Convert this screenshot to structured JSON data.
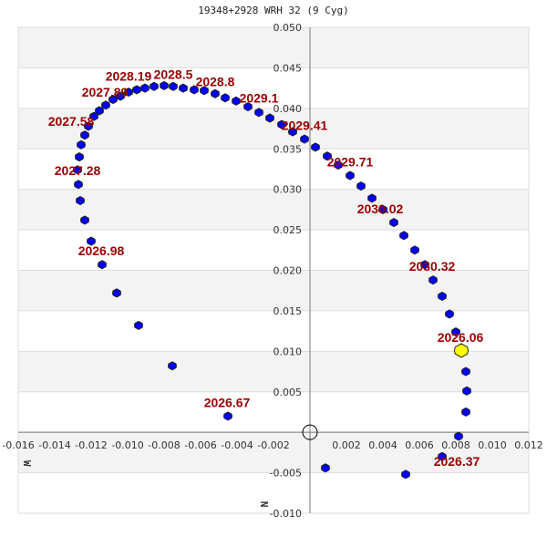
{
  "chart_data": {
    "type": "scatter",
    "title": "19348+2928 WRH  32 (9 Cyg)",
    "xlabel": "W",
    "ylabel": "N",
    "xlim": [
      -0.016,
      0.012
    ],
    "ylim": [
      -0.01,
      0.05
    ],
    "x_ticks": [
      "-0.016",
      "-0.014",
      "-0.012",
      "-0.010",
      "-0.008",
      "-0.006",
      "-0.004",
      "-0.002",
      "0.002",
      "0.004",
      "0.006",
      "0.008",
      "0.010",
      "0.012"
    ],
    "y_ticks": [
      "0.050",
      "0.045",
      "0.040",
      "0.035",
      "0.030",
      "0.025",
      "0.020",
      "0.015",
      "0.010",
      "0.005",
      "-0.005",
      "-0.010"
    ],
    "grid": "horizontal alternating bands",
    "colors": {
      "points": "#0000ff",
      "current": "#ffff00",
      "labels": "#990000",
      "band": "#f3f3f3"
    },
    "current_position": {
      "label": "2026.06",
      "x": 0.0083,
      "y": 0.0101
    },
    "points": [
      [
        0.00855,
        0.0075
      ],
      [
        0.0086,
        0.0051
      ],
      [
        0.00855,
        0.0025
      ],
      [
        0.00815,
        -0.0005
      ],
      [
        0.00725,
        -0.003
      ],
      [
        0.00525,
        -0.0052
      ],
      [
        0.00085,
        -0.0044
      ],
      [
        -0.0045,
        0.002
      ],
      [
        -0.00755,
        0.0082
      ],
      [
        -0.0094,
        0.0132
      ],
      [
        -0.0106,
        0.0172
      ],
      [
        -0.0114,
        0.0207
      ],
      [
        -0.012,
        0.0236
      ],
      [
        -0.01235,
        0.0262
      ],
      [
        -0.0126,
        0.0286
      ],
      [
        -0.0127,
        0.0306
      ],
      [
        -0.01275,
        0.0324
      ],
      [
        -0.01265,
        0.034
      ],
      [
        -0.01255,
        0.0355
      ],
      [
        -0.01235,
        0.0367
      ],
      [
        -0.01215,
        0.0378
      ],
      [
        -0.01185,
        0.039
      ],
      [
        -0.01155,
        0.0397
      ],
      [
        -0.0112,
        0.0404
      ],
      [
        -0.0108,
        0.0411
      ],
      [
        -0.0104,
        0.0415
      ],
      [
        -0.00995,
        0.042
      ],
      [
        -0.0095,
        0.0423
      ],
      [
        -0.00905,
        0.0425
      ],
      [
        -0.00855,
        0.0427
      ],
      [
        -0.008,
        0.0428
      ],
      [
        -0.0075,
        0.0427
      ],
      [
        -0.00695,
        0.0425
      ],
      [
        -0.00635,
        0.0423
      ],
      [
        -0.0058,
        0.0422
      ],
      [
        -0.0052,
        0.0418
      ],
      [
        -0.00465,
        0.0413
      ],
      [
        -0.00405,
        0.0409
      ],
      [
        -0.0034,
        0.0402
      ],
      [
        -0.0028,
        0.0395
      ],
      [
        -0.0022,
        0.0388
      ],
      [
        -0.00155,
        0.038
      ],
      [
        -0.00095,
        0.0371
      ],
      [
        -0.0003,
        0.0362
      ],
      [
        0.0003,
        0.0352
      ],
      [
        0.00095,
        0.0341
      ],
      [
        0.00155,
        0.033
      ],
      [
        0.0022,
        0.0317
      ],
      [
        0.0028,
        0.0304
      ],
      [
        0.0034,
        0.0289
      ],
      [
        0.004,
        0.0275
      ],
      [
        0.0046,
        0.0259
      ],
      [
        0.00515,
        0.0243
      ],
      [
        0.00575,
        0.0225
      ],
      [
        0.0063,
        0.0207
      ],
      [
        0.00675,
        0.0188
      ],
      [
        0.00725,
        0.0168
      ],
      [
        0.00765,
        0.0146
      ],
      [
        0.008,
        0.0124
      ]
    ],
    "annotations": [
      {
        "text": "2026.06",
        "x": 0.00825,
        "y": 0.0117
      },
      {
        "text": "2026.37",
        "x": 0.00805,
        "y": -0.0021
      },
      {
        "text": "2026.67",
        "x": -0.00455,
        "y": 0.0037
      },
      {
        "text": "2026.98",
        "x": -0.01145,
        "y": 0.0224
      },
      {
        "text": "2027.28",
        "x": -0.01275,
        "y": 0.0323
      },
      {
        "text": "2027.58",
        "x": -0.0131,
        "y": 0.0384
      },
      {
        "text": "2027.89",
        "x": -0.01125,
        "y": 0.042
      },
      {
        "text": "2028.19",
        "x": -0.0096,
        "y": 0.044
      },
      {
        "text": "2028.5",
        "x": -0.0075,
        "y": 0.0442
      },
      {
        "text": "2028.8",
        "x": -0.0052,
        "y": 0.0433
      },
      {
        "text": "2029.1",
        "x": -0.0028,
        "y": 0.0413
      },
      {
        "text": "2029.41",
        "x": -0.0003,
        "y": 0.0379
      },
      {
        "text": "2029.71",
        "x": 0.0022,
        "y": 0.0334
      },
      {
        "text": "2030.02",
        "x": 0.00385,
        "y": 0.0276
      },
      {
        "text": "2030.32",
        "x": 0.0067,
        "y": 0.0205
      }
    ]
  }
}
